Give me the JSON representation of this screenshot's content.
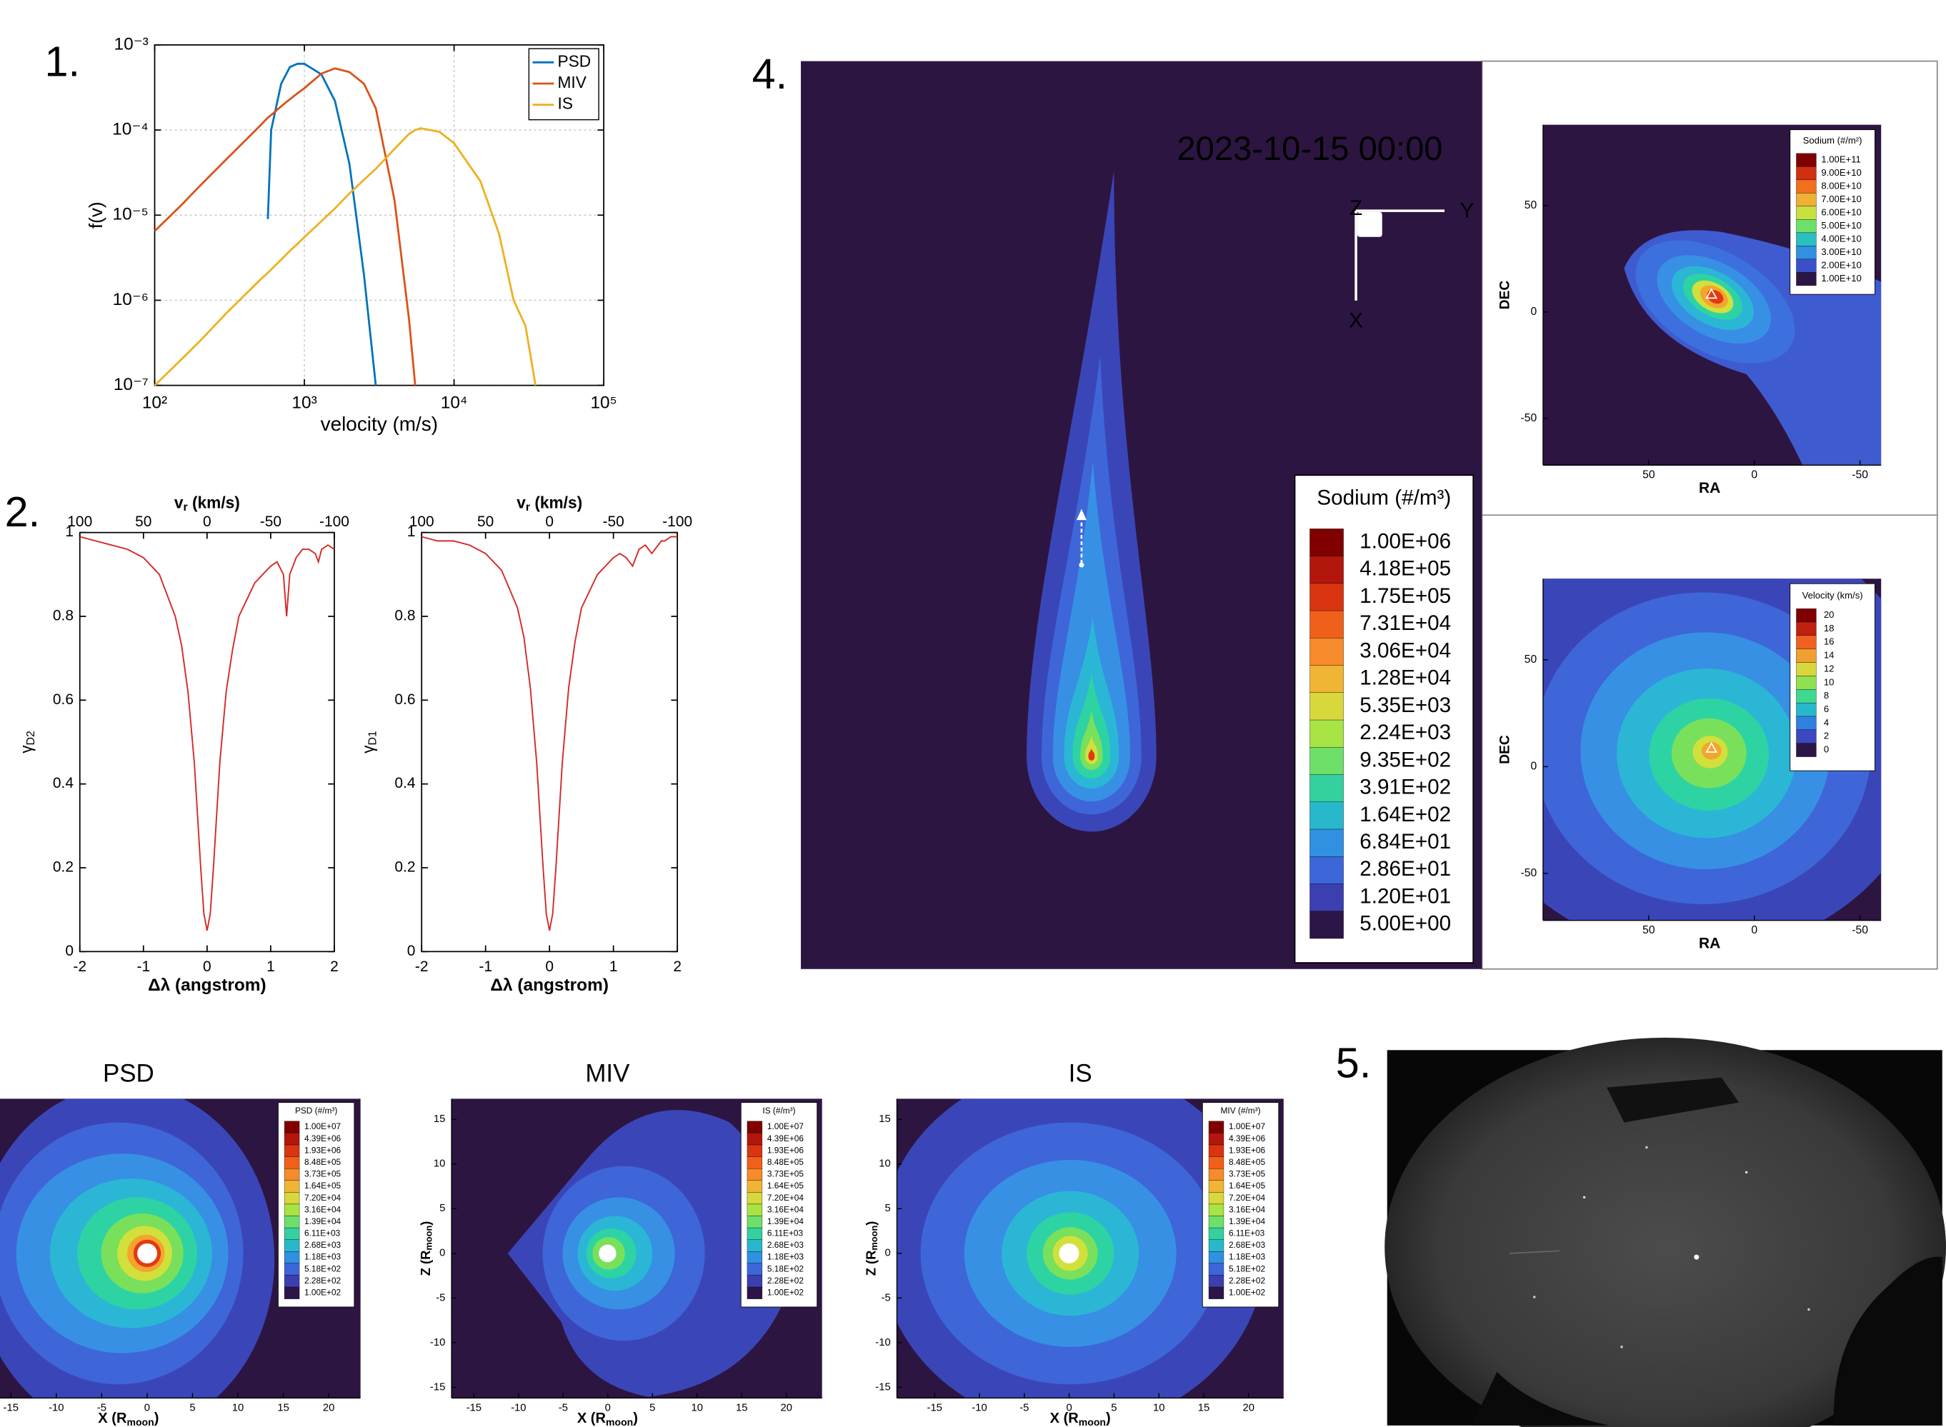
{
  "panel_labels": [
    "1.",
    "2.",
    "4.",
    "5."
  ],
  "chart_data": [
    {
      "type": "line",
      "xscale": "log",
      "yscale": "log",
      "grid": true,
      "legend": "upper right",
      "xlabel": "velocity (m/s)",
      "ylabel": "f(v)",
      "xlim": [
        100,
        100000
      ],
      "ylim": [
        1e-07,
        0.001
      ],
      "xticks": [
        {
          "value": 100,
          "label": "10²"
        },
        {
          "value": 1000,
          "label": "10³"
        },
        {
          "value": 10000,
          "label": "10⁴"
        },
        {
          "value": 100000,
          "label": "10⁵"
        }
      ],
      "yticks": [
        {
          "value": 1e-07,
          "label": "10⁻⁷"
        },
        {
          "value": 1e-06,
          "label": "10⁻⁶"
        },
        {
          "value": 1e-05,
          "label": "10⁻⁵"
        },
        {
          "value": 0.0001,
          "label": "10⁻⁴"
        },
        {
          "value": 0.001,
          "label": "10⁻³"
        }
      ],
      "x": [
        100,
        150,
        200,
        300,
        500,
        570,
        600,
        700,
        800,
        900,
        1000,
        1300,
        1600,
        2000,
        2500,
        3000,
        4000,
        5000,
        5500,
        6000,
        8000,
        10000,
        15000,
        20000,
        25000,
        30000,
        35000
      ],
      "series": [
        {
          "name": "PSD",
          "color": "#0072bd",
          "values": [
            null,
            null,
            null,
            null,
            null,
            9e-06,
            0.0001,
            0.00035,
            0.00055,
            0.0006,
            0.0006,
            0.00045,
            0.00022,
            4e-05,
            2e-06,
            1e-07,
            null,
            null,
            null,
            null,
            null,
            null,
            null,
            null,
            null,
            null,
            null
          ]
        },
        {
          "name": "MIV",
          "color": "#d95319",
          "values": [
            6.5e-06,
            1.3e-05,
            2.2e-05,
            4.5e-05,
            0.00011,
            0.00014,
            0.00015,
            0.00019,
            0.00023,
            0.00027,
            0.00031,
            0.00046,
            0.00053,
            0.00048,
            0.00035,
            0.00018,
            1.5e-05,
            6e-07,
            1e-07,
            null,
            null,
            null,
            null,
            null,
            null,
            null,
            null
          ]
        },
        {
          "name": "IS",
          "color": "#edb120",
          "values": [
            1e-07,
            2e-07,
            3.3e-07,
            7e-07,
            1.7e-06,
            2.1e-06,
            2.3e-06,
            3e-06,
            3.8e-06,
            4.6e-06,
            5.5e-06,
            8.5e-06,
            1.2e-05,
            1.8e-05,
            2.6e-05,
            3.5e-05,
            6e-05,
            9e-05,
            0.0001,
            0.000105,
            9.5e-05,
            7e-05,
            2.5e-05,
            6e-06,
            1e-06,
            5e-07,
            1e-07
          ]
        }
      ]
    },
    {
      "type": "line",
      "color": "#d42a2a",
      "xlabel": "Δλ (angstrom)",
      "ylabel": [
        "γ",
        "D2"
      ],
      "x2label": [
        "v",
        "r",
        " (km/s)"
      ],
      "xlim": [
        -2,
        2
      ],
      "ylim": [
        0,
        1
      ],
      "x2lim": [
        100,
        -100
      ],
      "xticks": [
        -2,
        -1,
        0,
        1,
        2
      ],
      "yticks": [
        0,
        0.2,
        0.4,
        0.6,
        0.8,
        1
      ],
      "x2ticks": [
        100,
        50,
        0,
        -50,
        -100
      ],
      "x": [
        -2,
        -1.75,
        -1.5,
        -1.25,
        -1,
        -0.75,
        -0.5,
        -0.4,
        -0.3,
        -0.2,
        -0.1,
        -0.05,
        0,
        0.05,
        0.1,
        0.2,
        0.3,
        0.4,
        0.5,
        0.75,
        1,
        1.1,
        1.2,
        1.25,
        1.3,
        1.4,
        1.5,
        1.6,
        1.7,
        1.75,
        1.8,
        1.9,
        2
      ],
      "values": [
        0.99,
        0.98,
        0.97,
        0.96,
        0.94,
        0.9,
        0.8,
        0.73,
        0.62,
        0.45,
        0.2,
        0.09,
        0.05,
        0.09,
        0.2,
        0.45,
        0.62,
        0.72,
        0.8,
        0.88,
        0.92,
        0.93,
        0.9,
        0.8,
        0.9,
        0.94,
        0.96,
        0.96,
        0.95,
        0.93,
        0.96,
        0.97,
        0.96
      ]
    },
    {
      "type": "line",
      "color": "#d42a2a",
      "xlabel": "Δλ (angstrom)",
      "ylabel": [
        "γ",
        "D1"
      ],
      "x2label": [
        "v",
        "r",
        " (km/s)"
      ],
      "xlim": [
        -2,
        2
      ],
      "ylim": [
        0,
        1
      ],
      "x2lim": [
        100,
        -100
      ],
      "xticks": [
        -2,
        -1,
        0,
        1,
        2
      ],
      "yticks": [
        0,
        0.2,
        0.4,
        0.6,
        0.8,
        1
      ],
      "x2ticks": [
        100,
        50,
        0,
        -50,
        -100
      ],
      "x": [
        -2,
        -1.75,
        -1.5,
        -1.25,
        -1,
        -0.75,
        -0.5,
        -0.4,
        -0.3,
        -0.2,
        -0.1,
        -0.05,
        0,
        0.05,
        0.1,
        0.2,
        0.3,
        0.4,
        0.5,
        0.75,
        1,
        1.1,
        1.2,
        1.25,
        1.3,
        1.4,
        1.5,
        1.6,
        1.7,
        1.75,
        1.8,
        1.9,
        2
      ],
      "values": [
        0.99,
        0.98,
        0.98,
        0.97,
        0.95,
        0.91,
        0.82,
        0.75,
        0.63,
        0.45,
        0.2,
        0.09,
        0.05,
        0.09,
        0.2,
        0.45,
        0.63,
        0.74,
        0.82,
        0.9,
        0.94,
        0.95,
        0.94,
        0.93,
        0.92,
        0.96,
        0.97,
        0.95,
        0.97,
        0.98,
        0.98,
        0.99,
        0.99
      ]
    },
    {
      "type": "contour",
      "annotation": "2023-10-15 00:00",
      "axis_labels": [
        "Z",
        "Y",
        "X"
      ],
      "colorbar": {
        "title": "Sodium (#/m³)",
        "ticks": [
          {
            "value": 1000000,
            "label": "1.00E+06"
          },
          {
            "value": 418000,
            "label": "4.18E+05"
          },
          {
            "value": 175000,
            "label": "1.75E+05"
          },
          {
            "value": 73100,
            "label": "7.31E+04"
          },
          {
            "value": 30600,
            "label": "3.06E+04"
          },
          {
            "value": 12800,
            "label": "1.28E+04"
          },
          {
            "value": 5350,
            "label": "5.35E+03"
          },
          {
            "value": 2240,
            "label": "2.24E+03"
          },
          {
            "value": 935,
            "label": "9.35E+02"
          },
          {
            "value": 391,
            "label": "3.91E+02"
          },
          {
            "value": 164,
            "label": "1.64E+02"
          },
          {
            "value": 68.4,
            "label": "6.84E+01"
          },
          {
            "value": 28.6,
            "label": "2.86E+01"
          },
          {
            "value": 12,
            "label": "1.20E+01"
          },
          {
            "value": 5,
            "label": "5.00E+00"
          }
        ],
        "colors": [
          "#800000",
          "#b3160b",
          "#d93510",
          "#f0601a",
          "#f78a2a",
          "#f0b535",
          "#d8d83c",
          "#a8e444",
          "#6ee06a",
          "#35d0a0",
          "#28b8cc",
          "#3090e2",
          "#3d66d8",
          "#3b3fb0",
          "#2b1647"
        ]
      }
    },
    {
      "type": "contour",
      "xlabel": "RA",
      "ylabel": "DEC",
      "xlim": [
        100,
        -60
      ],
      "ylim": [
        -72,
        88
      ],
      "xticks": [
        50,
        0,
        -50
      ],
      "yticks": [
        50,
        0,
        -50
      ],
      "colorbar": {
        "title": "Sodium (#/m²)",
        "ticks": [
          {
            "value": 100000000000,
            "label": "1.00E+11"
          },
          {
            "value": 90000000000,
            "label": "9.00E+10"
          },
          {
            "value": 80000000000,
            "label": "8.00E+10"
          },
          {
            "value": 70000000000,
            "label": "7.00E+10"
          },
          {
            "value": 60000000000,
            "label": "6.00E+10"
          },
          {
            "value": 50000000000,
            "label": "5.00E+10"
          },
          {
            "value": 40000000000,
            "label": "4.00E+10"
          },
          {
            "value": 30000000000,
            "label": "3.00E+10"
          },
          {
            "value": 20000000000,
            "label": "2.00E+10"
          },
          {
            "value": 10000000000,
            "label": "1.00E+10"
          }
        ],
        "colors": [
          "#800000",
          "#d03010",
          "#f07020",
          "#f0b035",
          "#c8e040",
          "#6ee06a",
          "#2ac0c0",
          "#3090e2",
          "#3b50c8",
          "#2b1647"
        ]
      }
    },
    {
      "type": "contour",
      "xlabel": "RA",
      "ylabel": "DEC",
      "xlim": [
        100,
        -60
      ],
      "ylim": [
        -72,
        88
      ],
      "xticks": [
        50,
        0,
        -50
      ],
      "yticks": [
        50,
        0,
        -50
      ],
      "colorbar": {
        "title": "Velocity (km/s)",
        "ticks": [
          20,
          18,
          16,
          14,
          12,
          10,
          8,
          6,
          4,
          2,
          0
        ],
        "colors": [
          "#800000",
          "#c02010",
          "#f06020",
          "#f0a030",
          "#d8d83c",
          "#90e050",
          "#40d890",
          "#28b8cc",
          "#3080e0",
          "#3b48c0",
          "#2b1647"
        ]
      }
    },
    {
      "type": "contour",
      "title": "PSD",
      "xlabel": [
        "X (R",
        "moon",
        ")"
      ],
      "xlim": [
        -16.2,
        23.5
      ],
      "xticks": [
        -15,
        -10,
        -5,
        0,
        5,
        10,
        15,
        20
      ],
      "colorbar": {
        "title": "PSD (#/m³)",
        "ticks": [
          {
            "value": 10000000,
            "label": "1.00E+07"
          },
          {
            "value": 4390000,
            "label": "4.39E+06"
          },
          {
            "value": 1930000,
            "label": "1.93E+06"
          },
          {
            "value": 848000,
            "label": "8.48E+05"
          },
          {
            "value": 373000,
            "label": "3.73E+05"
          },
          {
            "value": 164000,
            "label": "1.64E+05"
          },
          {
            "value": 72000,
            "label": "7.20E+04"
          },
          {
            "value": 31600,
            "label": "3.16E+04"
          },
          {
            "value": 13900,
            "label": "1.39E+04"
          },
          {
            "value": 6110,
            "label": "6.11E+03"
          },
          {
            "value": 2680,
            "label": "2.68E+03"
          },
          {
            "value": 1180,
            "label": "1.18E+03"
          },
          {
            "value": 518,
            "label": "5.18E+02"
          },
          {
            "value": 228,
            "label": "2.28E+02"
          },
          {
            "value": 100,
            "label": "1.00E+02"
          }
        ],
        "colors": [
          "#800000",
          "#b3160b",
          "#d93510",
          "#f0601a",
          "#f78a2a",
          "#f0b535",
          "#d8d83c",
          "#a8e444",
          "#6ee06a",
          "#35d0a0",
          "#28b8cc",
          "#3090e2",
          "#3d66d8",
          "#3b3fb0",
          "#2b1647"
        ]
      }
    },
    {
      "type": "contour",
      "title": "MIV",
      "xlabel": [
        "X (R",
        "moon",
        ")"
      ],
      "ylabel": [
        "Z (R",
        "moon",
        ")"
      ],
      "xlim": [
        -17.5,
        24
      ],
      "ylim": [
        -16.2,
        17.3
      ],
      "xticks": [
        -15,
        -10,
        -5,
        0,
        5,
        10,
        15,
        20
      ],
      "yticks": [
        15,
        10,
        5,
        0,
        -5,
        -10,
        -15
      ],
      "colorbar": {
        "title": "IS (#/m³)",
        "ticks": [
          {
            "value": 10000000,
            "label": "1.00E+07"
          },
          {
            "value": 4390000,
            "label": "4.39E+06"
          },
          {
            "value": 1930000,
            "label": "1.93E+06"
          },
          {
            "value": 848000,
            "label": "8.48E+05"
          },
          {
            "value": 373000,
            "label": "3.73E+05"
          },
          {
            "value": 164000,
            "label": "1.64E+05"
          },
          {
            "value": 72000,
            "label": "7.20E+04"
          },
          {
            "value": 31600,
            "label": "3.16E+04"
          },
          {
            "value": 13900,
            "label": "1.39E+04"
          },
          {
            "value": 6110,
            "label": "6.11E+03"
          },
          {
            "value": 2680,
            "label": "2.68E+03"
          },
          {
            "value": 1180,
            "label": "1.18E+03"
          },
          {
            "value": 518,
            "label": "5.18E+02"
          },
          {
            "value": 228,
            "label": "2.28E+02"
          },
          {
            "value": 100,
            "label": "1.00E+02"
          }
        ],
        "colors": [
          "#800000",
          "#b3160b",
          "#d93510",
          "#f0601a",
          "#f78a2a",
          "#f0b535",
          "#d8d83c",
          "#a8e444",
          "#6ee06a",
          "#35d0a0",
          "#28b8cc",
          "#3090e2",
          "#3d66d8",
          "#3b3fb0",
          "#2b1647"
        ]
      }
    },
    {
      "type": "contour",
      "title": "IS",
      "xlabel": [
        "X (R",
        "moon",
        ")"
      ],
      "ylabel": [
        "Z (R",
        "moon",
        ")"
      ],
      "xlim": [
        -19.2,
        23.9
      ],
      "ylim": [
        -16.2,
        17.3
      ],
      "xticks": [
        -15,
        -10,
        -5,
        0,
        5,
        10,
        15,
        20
      ],
      "yticks": [
        15,
        10,
        5,
        0,
        -5,
        -10,
        -15
      ],
      "colorbar": {
        "title": "MIV (#/m³)",
        "ticks": [
          {
            "value": 10000000,
            "label": "1.00E+07"
          },
          {
            "value": 4390000,
            "label": "4.39E+06"
          },
          {
            "value": 1930000,
            "label": "1.93E+06"
          },
          {
            "value": 848000,
            "label": "8.48E+05"
          },
          {
            "value": 373000,
            "label": "3.73E+05"
          },
          {
            "value": 164000,
            "label": "1.64E+05"
          },
          {
            "value": 72000,
            "label": "7.20E+04"
          },
          {
            "value": 31600,
            "label": "3.16E+04"
          },
          {
            "value": 13900,
            "label": "1.39E+04"
          },
          {
            "value": 6110,
            "label": "6.11E+03"
          },
          {
            "value": 2680,
            "label": "2.68E+03"
          },
          {
            "value": 1180,
            "label": "1.18E+03"
          },
          {
            "value": 518,
            "label": "5.18E+02"
          },
          {
            "value": 228,
            "label": "2.28E+02"
          },
          {
            "value": 100,
            "label": "1.00E+02"
          }
        ],
        "colors": [
          "#800000",
          "#b3160b",
          "#d93510",
          "#f0601a",
          "#f78a2a",
          "#f0b535",
          "#d8d83c",
          "#a8e444",
          "#6ee06a",
          "#35d0a0",
          "#28b8cc",
          "#3090e2",
          "#3d66d8",
          "#3b3fb0",
          "#2b1647"
        ]
      }
    }
  ]
}
